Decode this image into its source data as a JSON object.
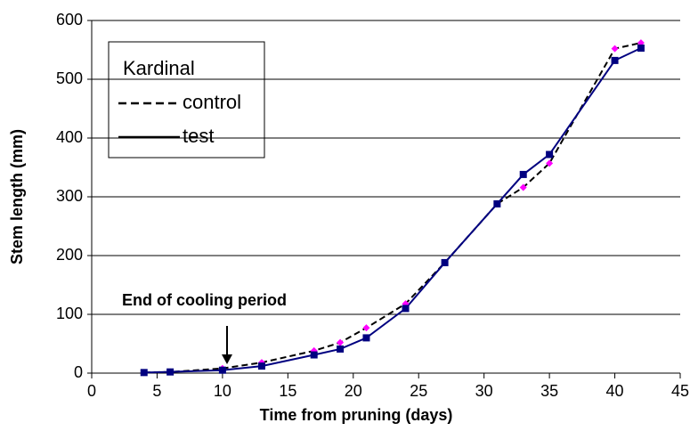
{
  "chart_data": {
    "type": "line",
    "x_label": "Time from pruning (days)",
    "y_label": "Stem length (mm)",
    "x": [
      4,
      6,
      10,
      13,
      17,
      19,
      21,
      24,
      27,
      31,
      33,
      35,
      40,
      42
    ],
    "series": [
      {
        "name": "control",
        "color": "#000000",
        "marker_color": "#ff00ff",
        "marker": "diamond",
        "dashed": true,
        "values": [
          1,
          2,
          8,
          18,
          38,
          52,
          77,
          118,
          188,
          288,
          316,
          357,
          552,
          562
        ]
      },
      {
        "name": "test",
        "color": "#000080",
        "marker_color": "#000080",
        "marker": "square",
        "dashed": false,
        "values": [
          1,
          2,
          5,
          12,
          31,
          41,
          60,
          110,
          188,
          288,
          338,
          372,
          532,
          553
        ]
      }
    ],
    "legend_title": "Kardinal",
    "annotation": "End of cooling period",
    "xlim": [
      0,
      45
    ],
    "xticks": [
      0,
      5,
      10,
      15,
      20,
      25,
      30,
      35,
      40,
      45
    ],
    "ylim": [
      0,
      600
    ],
    "yticks": [
      0,
      100,
      200,
      300,
      400,
      500,
      600
    ],
    "grid": true
  }
}
